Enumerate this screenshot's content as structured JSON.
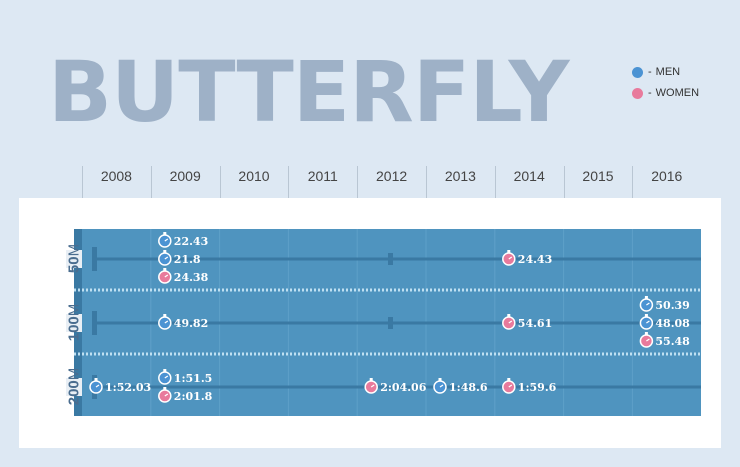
{
  "title": "BUTTERFLY",
  "legend": [
    {
      "label": "MEN",
      "color": "#4b93d3"
    },
    {
      "label": "WOMEN",
      "color": "#e87a9c"
    }
  ],
  "colors": {
    "title": "#9eb1c7",
    "pool": "#4f94bf",
    "lane_dark": "#3a79a3",
    "men": "#4b93d3",
    "women": "#e87a9c",
    "years_bg": "#dde8f3"
  },
  "chart_data": {
    "type": "scatter",
    "title": "BUTTERFLY",
    "x": [
      "2008",
      "2009",
      "2010",
      "2011",
      "2012",
      "2013",
      "2014",
      "2015",
      "2016"
    ],
    "events": [
      {
        "distance": "50",
        "unit": "M"
      },
      {
        "distance": "100",
        "unit": "M"
      },
      {
        "distance": "200",
        "unit": "M"
      }
    ],
    "series": [
      {
        "name": "MEN",
        "points": [
          {
            "year": "2009",
            "event": "50",
            "time": "22.43"
          },
          {
            "year": "2009",
            "event": "50",
            "time": "21.8"
          },
          {
            "year": "2009",
            "event": "100",
            "time": "49.82"
          },
          {
            "year": "2016",
            "event": "100",
            "time": "50.39"
          },
          {
            "year": "2016",
            "event": "100",
            "time": "48.08"
          },
          {
            "year": "2008",
            "event": "200",
            "time": "1:52.03"
          },
          {
            "year": "2009",
            "event": "200",
            "time": "1:51.5"
          },
          {
            "year": "2013",
            "event": "200",
            "time": "1:48.6"
          }
        ]
      },
      {
        "name": "WOMEN",
        "points": [
          {
            "year": "2009",
            "event": "50",
            "time": "24.38"
          },
          {
            "year": "2014",
            "event": "50",
            "time": "24.43"
          },
          {
            "year": "2014",
            "event": "100",
            "time": "54.61"
          },
          {
            "year": "2016",
            "event": "100",
            "time": "55.48"
          },
          {
            "year": "2009",
            "event": "200",
            "time": "2:01.8"
          },
          {
            "year": "2012",
            "event": "200",
            "time": "2:04.06"
          },
          {
            "year": "2014",
            "event": "200",
            "time": "1:59.6"
          }
        ]
      }
    ]
  }
}
